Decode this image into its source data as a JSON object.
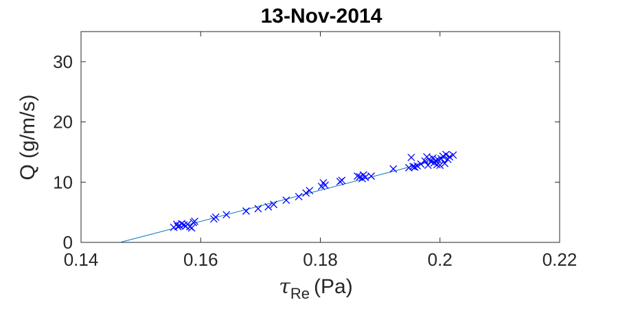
{
  "chart_data": {
    "type": "scatter",
    "title": "13-Nov-2014",
    "xlabel": {
      "symbol": "τ",
      "subscript": "Re",
      "unit": "(Pa)"
    },
    "ylabel": "Q (g/m/s)",
    "xlim": [
      0.14,
      0.22
    ],
    "ylim": [
      0,
      35
    ],
    "xticks": [
      0.14,
      0.16,
      0.18,
      0.2,
      0.22
    ],
    "xtick_labels": [
      "0.14",
      "0.16",
      "0.18",
      "0.2",
      "0.22"
    ],
    "yticks": [
      0,
      10,
      20,
      30
    ],
    "ytick_labels": [
      "0",
      "10",
      "20",
      "30"
    ],
    "grid": false,
    "colors": {
      "marker": "#0000ff",
      "fit_line": "#0072bd",
      "axis": "#262626"
    },
    "series": [
      {
        "marker": "x",
        "x": [
          0.1555,
          0.156,
          0.1562,
          0.1565,
          0.1568,
          0.1572,
          0.1575,
          0.1578,
          0.1582,
          0.1585,
          0.1588,
          0.159,
          0.1622,
          0.1625,
          0.1643,
          0.1676,
          0.1696,
          0.1713,
          0.1722,
          0.1743,
          0.1764,
          0.1776,
          0.1782,
          0.1802,
          0.1805,
          0.1808,
          0.1833,
          0.1836,
          0.1862,
          0.1866,
          0.187,
          0.1872,
          0.1875,
          0.1885,
          0.1922,
          0.1948,
          0.1952,
          0.1955,
          0.1958,
          0.1962,
          0.1968,
          0.1975,
          0.1978,
          0.198,
          0.1982,
          0.1985,
          0.1988,
          0.199,
          0.1993,
          0.1995,
          0.1997,
          0.2,
          0.2002,
          0.2005,
          0.2008,
          0.201,
          0.2013,
          0.2016,
          0.2022
        ],
        "y": [
          2.5,
          3.0,
          2.6,
          2.8,
          3.1,
          2.9,
          2.7,
          3.0,
          2.6,
          2.4,
          3.3,
          3.5,
          3.9,
          4.2,
          4.6,
          5.2,
          5.6,
          5.9,
          6.3,
          7.0,
          7.6,
          8.2,
          8.6,
          9.3,
          9.9,
          9.5,
          10.1,
          10.3,
          11.0,
          10.9,
          10.6,
          11.2,
          10.8,
          11.0,
          12.2,
          12.4,
          14.1,
          12.6,
          12.5,
          12.7,
          13.0,
          13.5,
          14.2,
          12.8,
          13.8,
          13.4,
          14.0,
          13.2,
          13.6,
          12.9,
          13.7,
          12.8,
          13.9,
          14.3,
          13.1,
          14.6,
          13.8,
          14.2,
          14.5
        ]
      }
    ],
    "fit_line": {
      "x": [
        0.1465,
        0.2022
      ],
      "y": [
        0,
        14.4
      ]
    }
  }
}
